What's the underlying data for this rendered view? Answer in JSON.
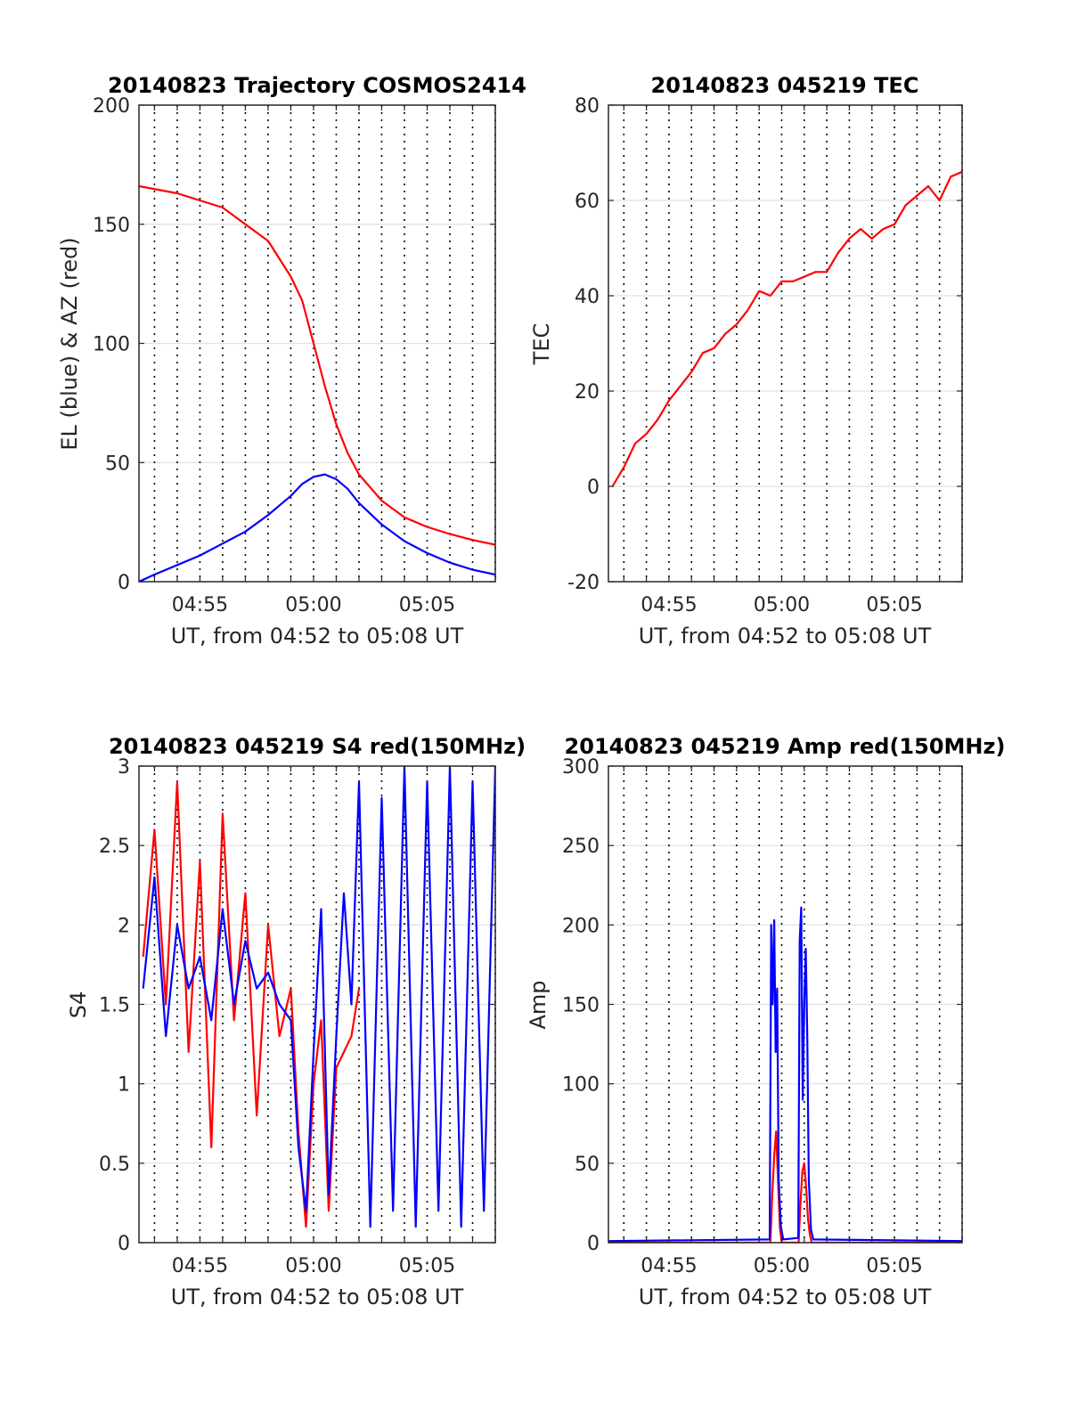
{
  "figure": {
    "background": "#ffffff"
  },
  "chart_data": [
    {
      "id": "trajectory",
      "type": "line",
      "title": "20140823 Trajectory COSMOS2414",
      "xlabel": "UT, from 04:52 to 05:08 UT",
      "ylabel": "EL (blue) & AZ (red)",
      "xlim": [
        "04:52:19",
        "05:08:00"
      ],
      "ylim": [
        0,
        200
      ],
      "xticks": [
        "04:55",
        "05:00",
        "05:05"
      ],
      "yticks": [
        0,
        50,
        100,
        150,
        200
      ],
      "grid": true,
      "series": [
        {
          "color": "#ff0000",
          "x": [
            "04:52:19",
            "04:54:00",
            "04:56:00",
            "04:58:00",
            "04:59:00",
            "04:59:30",
            "05:00:00",
            "05:00:30",
            "05:01:00",
            "05:01:30",
            "05:02:00",
            "05:03:00",
            "05:04:00",
            "05:05:00",
            "05:06:00",
            "05:07:00",
            "05:08:00"
          ],
          "y": [
            166,
            163,
            157,
            143,
            128,
            118,
            100,
            82,
            66,
            54,
            45,
            34,
            27,
            23,
            20,
            17.5,
            15.5
          ]
        },
        {
          "color": "#0000ff",
          "x": [
            "04:52:19",
            "04:53:00",
            "04:54:00",
            "04:55:00",
            "04:56:00",
            "04:57:00",
            "04:58:00",
            "04:59:00",
            "04:59:30",
            "05:00:00",
            "05:00:30",
            "05:01:00",
            "05:01:30",
            "05:02:00",
            "05:03:00",
            "05:04:00",
            "05:05:00",
            "05:06:00",
            "05:07:00",
            "05:08:00"
          ],
          "y": [
            0,
            3,
            7,
            11,
            16,
            21,
            28,
            36,
            41,
            44,
            45,
            43,
            39,
            33,
            24,
            17,
            12,
            8,
            5,
            3
          ]
        }
      ]
    },
    {
      "id": "tec",
      "type": "line",
      "title": "20140823 045219 TEC",
      "xlabel": "UT, from 04:52 to 05:08 UT",
      "ylabel": "TEC",
      "xlim": [
        "04:52:19",
        "05:08:00"
      ],
      "ylim": [
        -20,
        80
      ],
      "xticks": [
        "04:55",
        "05:00",
        "05:05"
      ],
      "yticks": [
        -20,
        0,
        20,
        40,
        60,
        80
      ],
      "grid": true,
      "series": [
        {
          "color": "#ff0000",
          "x": [
            "04:52:30",
            "04:53:00",
            "04:53:30",
            "04:54:00",
            "04:54:30",
            "04:55:00",
            "04:55:30",
            "04:56:00",
            "04:56:30",
            "04:57:00",
            "04:57:30",
            "04:58:00",
            "04:58:30",
            "04:59:00",
            "04:59:30",
            "05:00:00",
            "05:00:30",
            "05:01:00",
            "05:01:30",
            "05:02:00",
            "05:02:30",
            "05:03:00",
            "05:03:30",
            "05:04:00",
            "05:04:30",
            "05:05:00",
            "05:05:30",
            "05:06:00",
            "05:06:30",
            "05:07:00",
            "05:07:30",
            "05:08:00"
          ],
          "y": [
            0,
            4,
            9,
            11,
            14,
            18,
            21,
            24,
            28,
            29,
            32,
            34,
            37,
            41,
            40,
            43,
            43,
            44,
            45,
            45,
            49,
            52,
            54,
            52,
            54,
            55,
            59,
            61,
            63,
            60,
            65,
            66
          ]
        }
      ]
    },
    {
      "id": "s4",
      "type": "line",
      "title": "20140823 045219 S4 red(150MHz)",
      "xlabel": "UT, from 04:52 to 05:08 UT",
      "ylabel": "S4",
      "xlim": [
        "04:52:19",
        "05:08:00"
      ],
      "ylim": [
        0,
        3
      ],
      "xticks": [
        "04:55",
        "05:00",
        "05:05"
      ],
      "yticks": [
        0,
        0.5,
        1,
        1.5,
        2,
        2.5,
        3
      ],
      "grid": true,
      "series": [
        {
          "color": "#ff0000",
          "x": [
            "04:52:30",
            "04:53:00",
            "04:53:30",
            "04:54:00",
            "04:54:30",
            "04:55:00",
            "04:55:30",
            "04:56:00",
            "04:56:30",
            "04:57:00",
            "04:57:30",
            "04:58:00",
            "04:58:30",
            "04:59:00",
            "04:59:20",
            "04:59:40",
            "05:00:00",
            "05:00:20",
            "05:00:40",
            "05:01:00",
            "05:01:20",
            "05:01:40",
            "05:02:00"
          ],
          "y": [
            1.8,
            2.6,
            1.5,
            2.9,
            1.2,
            2.4,
            0.6,
            2.7,
            1.4,
            2.2,
            0.8,
            2.0,
            1.3,
            1.6,
            0.7,
            0.1,
            1.0,
            1.4,
            0.2,
            1.1,
            1.2,
            1.3,
            1.6
          ]
        },
        {
          "color": "#0000ff",
          "x": [
            "04:52:30",
            "04:53:00",
            "04:53:30",
            "04:54:00",
            "04:54:30",
            "04:55:00",
            "04:55:30",
            "04:56:00",
            "04:56:30",
            "04:57:00",
            "04:57:30",
            "04:58:00",
            "04:58:30",
            "04:59:00",
            "04:59:20",
            "04:59:40",
            "05:00:00",
            "05:00:20",
            "05:00:40",
            "05:01:00",
            "05:01:20",
            "05:01:40",
            "05:02:00",
            "05:02:30",
            "05:03:00",
            "05:03:30",
            "05:04:00",
            "05:04:30",
            "05:05:00",
            "05:05:30",
            "05:06:00",
            "05:06:30",
            "05:07:00",
            "05:07:30",
            "05:08:00"
          ],
          "y": [
            1.6,
            2.3,
            1.3,
            2.0,
            1.6,
            1.8,
            1.4,
            2.1,
            1.5,
            1.9,
            1.6,
            1.7,
            1.5,
            1.4,
            0.6,
            0.2,
            1.2,
            2.1,
            0.3,
            1.3,
            2.2,
            1.5,
            2.9,
            0.1,
            2.8,
            0.2,
            3.0,
            0.1,
            2.9,
            0.2,
            3.0,
            0.1,
            2.9,
            0.2,
            3.0
          ]
        }
      ]
    },
    {
      "id": "amp",
      "type": "line",
      "title": "20140823 045219 Amp red(150MHz)",
      "xlabel": "UT, from 04:52 to 05:08 UT",
      "ylabel": "Amp",
      "xlim": [
        "04:52:19",
        "05:08:00"
      ],
      "ylim": [
        0,
        300
      ],
      "xticks": [
        "04:55",
        "05:00",
        "05:05"
      ],
      "yticks": [
        0,
        50,
        100,
        150,
        200,
        250,
        300
      ],
      "grid": true,
      "series": [
        {
          "color": "#ff0000",
          "x": [
            "04:52:19",
            "04:59:30",
            "04:59:35",
            "04:59:40",
            "04:59:45",
            "04:59:50",
            "04:59:55",
            "05:00:00",
            "05:00:45",
            "05:00:50",
            "05:00:55",
            "05:01:00",
            "05:01:05",
            "05:01:10",
            "05:01:15",
            "05:01:20",
            "05:08:00"
          ],
          "y": [
            0,
            0,
            30,
            55,
            70,
            40,
            10,
            0,
            0,
            25,
            45,
            50,
            35,
            15,
            5,
            0,
            0
          ]
        },
        {
          "color": "#0000ff",
          "x": [
            "04:52:19",
            "04:59:28",
            "04:59:32",
            "04:59:36",
            "04:59:40",
            "04:59:44",
            "04:59:48",
            "04:59:52",
            "04:59:58",
            "05:00:04",
            "05:00:44",
            "05:00:48",
            "05:00:52",
            "05:00:56",
            "05:01:00",
            "05:01:04",
            "05:01:08",
            "05:01:12",
            "05:01:18",
            "05:01:24",
            "05:08:00"
          ],
          "y": [
            1,
            2,
            200,
            150,
            203,
            120,
            160,
            40,
            10,
            2,
            3,
            190,
            211,
            90,
            150,
            185,
            130,
            40,
            8,
            2,
            1
          ]
        }
      ]
    }
  ]
}
